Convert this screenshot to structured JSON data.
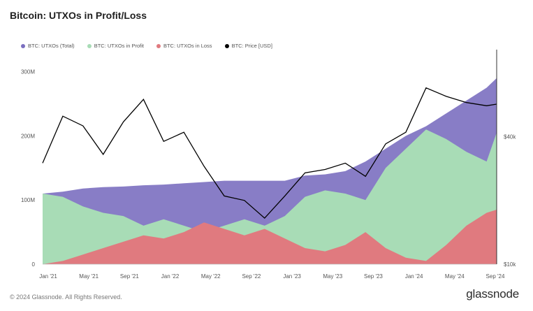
{
  "header": {
    "title": "Bitcoin: UTXOs in Profit/Loss"
  },
  "footer": {
    "copyright": "© 2024 Glassnode. All Rights Reserved.",
    "brand": "glassnode"
  },
  "colors": {
    "total": "#7b6fc0",
    "profit": "#a8dcb6",
    "loss": "#e07a7f",
    "price": "#000000"
  },
  "chart_data": {
    "type": "area",
    "title": "Bitcoin: UTXOs in Profit/Loss",
    "legend": [
      {
        "name": "BTC: UTXOs (Total)",
        "color": "#7b6fc0"
      },
      {
        "name": "BTC: UTXOs in Profit",
        "color": "#a8dcb6"
      },
      {
        "name": "BTC: UTXOs in Loss",
        "color": "#e07a7f"
      },
      {
        "name": "BTC: Price [USD]",
        "color": "#000000"
      }
    ],
    "legend_position": "top-left",
    "x_ticks": [
      "Jan '21",
      "May '21",
      "Sep '21",
      "Jan '22",
      "May '22",
      "Sep '22",
      "Jan '23",
      "May '23",
      "Sep '23",
      "Jan '24",
      "May '24",
      "Sep '24"
    ],
    "y_left_ticks": [
      "0",
      "100M",
      "200M",
      "300M"
    ],
    "y_left_range": [
      0,
      330
    ],
    "y_left_unit": "M",
    "y_right_ticks": [
      "$10k",
      "$40k"
    ],
    "y_right_scale": "log",
    "y_right_range": [
      10000,
      100000
    ],
    "x_months": [
      0,
      2,
      4,
      6,
      8,
      10,
      12,
      14,
      16,
      18,
      20,
      22,
      24,
      26,
      28,
      30,
      32,
      34,
      36,
      38,
      40,
      42,
      44,
      45
    ],
    "x_dates": [
      "Jan '21",
      "Mar '21",
      "May '21",
      "Jul '21",
      "Sep '21",
      "Nov '21",
      "Jan '22",
      "Mar '22",
      "May '22",
      "Jul '22",
      "Sep '22",
      "Nov '22",
      "Jan '23",
      "Mar '23",
      "May '23",
      "Jul '23",
      "Sep '23",
      "Nov '23",
      "Jan '24",
      "Mar '24",
      "May '24",
      "Jul '24",
      "Sep '24",
      "Sep '24"
    ],
    "series": [
      {
        "name": "BTC: UTXOs (Total)",
        "values": [
          110,
          113,
          118,
          120,
          121,
          123,
          124,
          126,
          128,
          130,
          130,
          130,
          130,
          138,
          140,
          145,
          160,
          180,
          200,
          215,
          235,
          255,
          275,
          290
        ]
      },
      {
        "name": "BTC: UTXOs in Profit",
        "values": [
          110,
          105,
          90,
          80,
          75,
          60,
          70,
          60,
          50,
          60,
          70,
          60,
          75,
          105,
          115,
          110,
          100,
          150,
          180,
          210,
          195,
          175,
          160,
          205
        ]
      },
      {
        "name": "BTC: UTXOs in Loss",
        "values": [
          0,
          5,
          15,
          25,
          35,
          45,
          40,
          50,
          65,
          55,
          45,
          55,
          40,
          25,
          20,
          30,
          50,
          25,
          10,
          5,
          30,
          60,
          80,
          85
        ]
      },
      {
        "name": "BTC: Price [USD]",
        "values": [
          30000,
          50000,
          45000,
          33000,
          47000,
          60000,
          38000,
          42000,
          29000,
          21000,
          20000,
          16500,
          21000,
          27000,
          28000,
          30000,
          26000,
          37000,
          42000,
          68000,
          62000,
          58000,
          56000,
          57000
        ]
      }
    ]
  }
}
